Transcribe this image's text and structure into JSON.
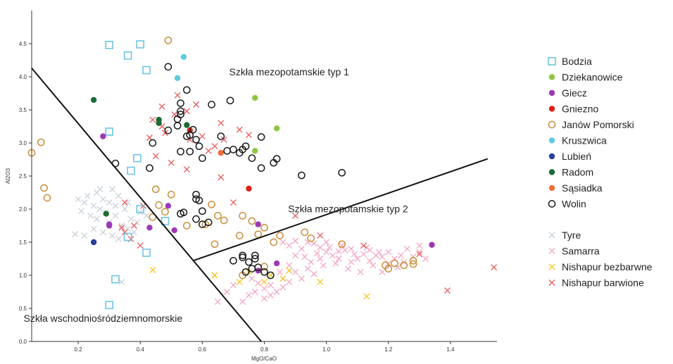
{
  "chart_data": {
    "type": "scatter",
    "xlabel": "MgO/CaO",
    "ylabel": "Al2O3",
    "xlim": [
      0.05,
      1.55
    ],
    "ylim": [
      0,
      5.0
    ],
    "x_ticks": [
      "0.2",
      "0.4",
      "0.6",
      "0.8",
      "1.0",
      "1.2",
      "1.4"
    ],
    "y_ticks": [
      "0.0",
      "0.5",
      "1.0",
      "1.5",
      "2.0",
      "2.5",
      "3.0",
      "3.5",
      "4.0",
      "4.5"
    ],
    "lines": [
      {
        "x1": 0.05,
        "y1": 4.13,
        "x2": 0.79,
        "y2": 0.0
      },
      {
        "x1": 0.57,
        "y1": 1.22,
        "x2": 1.52,
        "y2": 2.76
      }
    ],
    "annotations": [
      {
        "text": "Szkła mezopotamskie typ 1",
        "x": 0.88,
        "y": 4.02
      },
      {
        "text": "Szkła mezopotamskie typ 2",
        "x": 1.07,
        "y": 1.95
      },
      {
        "text": "Szkła wschodniośródziemnomorskie",
        "x": 0.28,
        "y": 0.3
      }
    ],
    "legend_position": "right",
    "series": [
      {
        "name": "Bodzia",
        "marker": "square",
        "color": "#6cc5e3",
        "points": [
          [
            0.3,
            4.48
          ],
          [
            0.4,
            4.49
          ],
          [
            0.36,
            4.32
          ],
          [
            0.42,
            4.1
          ],
          [
            0.3,
            3.17
          ],
          [
            0.39,
            2.77
          ],
          [
            0.37,
            2.58
          ],
          [
            0.4,
            2.0
          ],
          [
            0.36,
            1.58
          ],
          [
            0.48,
            1.82
          ],
          [
            0.42,
            1.34
          ],
          [
            0.32,
            0.94
          ],
          [
            0.3,
            0.55
          ]
        ]
      },
      {
        "name": "Dziekanowice",
        "marker": "dot",
        "color": "#8dc63f",
        "points": [
          [
            0.77,
            3.68
          ],
          [
            0.84,
            3.22
          ],
          [
            0.77,
            2.88
          ]
        ]
      },
      {
        "name": "Giecz",
        "marker": "dot",
        "color": "#9b3ab5",
        "points": [
          [
            0.28,
            3.1
          ],
          [
            0.49,
            2.05
          ],
          [
            0.3,
            1.75
          ],
          [
            0.43,
            1.72
          ],
          [
            0.51,
            1.68
          ],
          [
            0.78,
            1.77
          ],
          [
            0.84,
            1.18
          ],
          [
            0.78,
            1.07
          ],
          [
            1.34,
            1.46
          ],
          [
            0.3,
            1.77
          ]
        ]
      },
      {
        "name": "Gniezno",
        "marker": "dot",
        "color": "#e0201b",
        "points": [
          [
            0.56,
            3.19
          ],
          [
            0.75,
            2.31
          ]
        ]
      },
      {
        "name": "Janów Pomorski",
        "marker": "ring",
        "color": "#c98e3c",
        "points": [
          [
            0.08,
            3.01
          ],
          [
            0.05,
            2.85
          ],
          [
            0.09,
            2.32
          ],
          [
            0.1,
            2.17
          ],
          [
            0.49,
            4.55
          ],
          [
            0.45,
            2.3
          ],
          [
            0.46,
            2.06
          ],
          [
            0.5,
            2.22
          ],
          [
            0.44,
            1.88
          ],
          [
            0.48,
            1.96
          ],
          [
            0.63,
            2.07
          ],
          [
            0.65,
            1.9
          ],
          [
            0.67,
            1.83
          ],
          [
            0.61,
            1.77
          ],
          [
            0.73,
            1.9
          ],
          [
            0.76,
            1.82
          ],
          [
            0.78,
            1.62
          ],
          [
            0.8,
            1.72
          ],
          [
            0.85,
            1.6
          ],
          [
            0.93,
            1.65
          ],
          [
            0.64,
            1.47
          ],
          [
            0.72,
            1.6
          ],
          [
            0.8,
            1.13
          ],
          [
            1.19,
            1.15
          ],
          [
            1.2,
            1.1
          ],
          [
            1.22,
            1.18
          ],
          [
            1.25,
            1.15
          ],
          [
            1.28,
            1.17
          ],
          [
            1.28,
            1.22
          ],
          [
            1.05,
            1.47
          ],
          [
            0.95,
            1.56
          ],
          [
            0.73,
            1.0
          ],
          [
            0.55,
            1.75
          ],
          [
            0.83,
            1.5
          ]
        ]
      },
      {
        "name": "Kruszwica",
        "marker": "dot",
        "color": "#5ecae0",
        "points": [
          [
            0.54,
            4.3
          ],
          [
            0.52,
            3.98
          ]
        ]
      },
      {
        "name": "Lubień",
        "marker": "dot",
        "color": "#2b3f9e",
        "points": [
          [
            0.25,
            1.5
          ]
        ]
      },
      {
        "name": "Radom",
        "marker": "dot",
        "color": "#1e6b35",
        "points": [
          [
            0.25,
            3.65
          ],
          [
            0.46,
            3.35
          ],
          [
            0.46,
            3.3
          ],
          [
            0.55,
            3.27
          ],
          [
            0.29,
            1.93
          ]
        ]
      },
      {
        "name": "Sąsiadka",
        "marker": "dot",
        "color": "#f26b3a",
        "points": [
          [
            0.66,
            2.85
          ]
        ]
      },
      {
        "name": "Wolin",
        "marker": "ring",
        "color": "#1a1a1a",
        "points": [
          [
            0.49,
            4.15
          ],
          [
            0.55,
            3.8
          ],
          [
            0.53,
            3.6
          ],
          [
            0.53,
            3.48
          ],
          [
            0.53,
            3.43
          ],
          [
            0.52,
            3.36
          ],
          [
            0.52,
            3.26
          ],
          [
            0.55,
            3.1
          ],
          [
            0.57,
            3.2
          ],
          [
            0.58,
            3.05
          ],
          [
            0.56,
            3.12
          ],
          [
            0.59,
            2.95
          ],
          [
            0.6,
            2.77
          ],
          [
            0.53,
            2.87
          ],
          [
            0.56,
            2.87
          ],
          [
            0.49,
            3.19
          ],
          [
            0.44,
            3.0
          ],
          [
            0.43,
            2.62
          ],
          [
            0.32,
            2.69
          ],
          [
            0.63,
            3.58
          ],
          [
            0.69,
            3.64
          ],
          [
            0.66,
            3.1
          ],
          [
            0.68,
            2.88
          ],
          [
            0.7,
            2.9
          ],
          [
            0.72,
            2.85
          ],
          [
            0.74,
            2.95
          ],
          [
            0.73,
            2.9
          ],
          [
            0.76,
            2.77
          ],
          [
            0.79,
            3.09
          ],
          [
            0.79,
            2.62
          ],
          [
            0.84,
            2.76
          ],
          [
            0.83,
            2.7
          ],
          [
            0.92,
            2.51
          ],
          [
            1.05,
            2.55
          ],
          [
            0.58,
            2.22
          ],
          [
            0.58,
            2.15
          ],
          [
            0.59,
            2.13
          ],
          [
            0.6,
            1.97
          ],
          [
            0.58,
            1.85
          ],
          [
            0.54,
            1.95
          ],
          [
            0.53,
            1.93
          ],
          [
            0.62,
            1.8
          ],
          [
            0.6,
            1.77
          ],
          [
            0.73,
            1.3
          ],
          [
            0.73,
            1.27
          ],
          [
            0.75,
            1.2
          ],
          [
            0.77,
            1.3
          ],
          [
            0.77,
            1.25
          ],
          [
            0.76,
            1.1
          ],
          [
            0.78,
            1.12
          ],
          [
            0.74,
            1.05
          ],
          [
            0.8,
            1.05
          ],
          [
            0.82,
            1.0
          ],
          [
            0.7,
            1.22
          ]
        ]
      },
      {
        "name": "Tyre",
        "marker": "x",
        "color": "#c8d1d9",
        "points": [
          [
            0.2,
            2.15
          ],
          [
            0.22,
            2.1
          ],
          [
            0.23,
            2.2
          ],
          [
            0.25,
            2.05
          ],
          [
            0.26,
            2.25
          ],
          [
            0.27,
            2.0
          ],
          [
            0.28,
            2.15
          ],
          [
            0.3,
            2.1
          ],
          [
            0.31,
            2.3
          ],
          [
            0.32,
            2.05
          ],
          [
            0.33,
            2.2
          ],
          [
            0.35,
            2.0
          ],
          [
            0.36,
            2.1
          ],
          [
            0.24,
            1.9
          ],
          [
            0.26,
            1.85
          ],
          [
            0.29,
            1.95
          ],
          [
            0.3,
            1.8
          ],
          [
            0.32,
            1.9
          ],
          [
            0.34,
            1.75
          ],
          [
            0.37,
            1.85
          ],
          [
            0.39,
            1.8
          ],
          [
            0.4,
            1.95
          ],
          [
            0.22,
            1.6
          ],
          [
            0.19,
            1.62
          ],
          [
            0.25,
            1.7
          ],
          [
            0.28,
            1.65
          ],
          [
            0.31,
            1.6
          ],
          [
            0.33,
            1.55
          ],
          [
            0.36,
            1.7
          ],
          [
            0.38,
            1.65
          ],
          [
            0.42,
            1.9
          ],
          [
            0.34,
            0.9
          ],
          [
            0.21,
            1.97
          ],
          [
            0.27,
            2.3
          ]
        ]
      },
      {
        "name": "Samarra",
        "marker": "x",
        "color": "#f4a6bf",
        "points": [
          [
            0.86,
            1.5
          ],
          [
            0.88,
            1.45
          ],
          [
            0.9,
            1.52
          ],
          [
            0.92,
            1.4
          ],
          [
            0.94,
            1.5
          ],
          [
            0.96,
            1.48
          ],
          [
            0.98,
            1.42
          ],
          [
            1.0,
            1.35
          ],
          [
            1.02,
            1.3
          ],
          [
            1.04,
            1.25
          ],
          [
            1.06,
            1.38
          ],
          [
            1.08,
            1.2
          ],
          [
            1.1,
            1.25
          ],
          [
            1.12,
            1.32
          ],
          [
            1.14,
            1.22
          ],
          [
            1.16,
            1.3
          ],
          [
            1.18,
            1.28
          ],
          [
            1.2,
            1.35
          ],
          [
            1.22,
            1.25
          ],
          [
            1.24,
            1.3
          ],
          [
            1.26,
            1.4
          ],
          [
            1.28,
            1.28
          ],
          [
            1.3,
            1.35
          ],
          [
            0.9,
            1.3
          ],
          [
            0.95,
            1.2
          ],
          [
            0.99,
            1.15
          ],
          [
            1.03,
            1.18
          ],
          [
            1.07,
            1.1
          ],
          [
            1.11,
            1.05
          ],
          [
            1.15,
            1.15
          ],
          [
            0.76,
            0.95
          ],
          [
            0.78,
            0.88
          ],
          [
            0.8,
            0.8
          ],
          [
            0.82,
            0.85
          ],
          [
            0.84,
            0.75
          ],
          [
            0.86,
            0.82
          ],
          [
            0.88,
            0.9
          ],
          [
            0.75,
            0.7
          ],
          [
            0.8,
            0.65
          ],
          [
            0.73,
            0.6
          ],
          [
            0.77,
            0.75
          ],
          [
            0.9,
            1.05
          ],
          [
            0.92,
            0.95
          ],
          [
            0.94,
            1.1
          ],
          [
            0.96,
            1.02
          ],
          [
            0.68,
            0.75
          ],
          [
            0.7,
            0.85
          ],
          [
            0.65,
            0.6
          ],
          [
            0.85,
            1.05
          ],
          [
            0.88,
            1.15
          ],
          [
            1.0,
            1.5
          ],
          [
            1.05,
            1.45
          ],
          [
            1.13,
            1.42
          ],
          [
            1.2,
            1.18
          ],
          [
            1.25,
            1.2
          ],
          [
            1.18,
            1.05
          ],
          [
            1.3,
            1.45
          ],
          [
            1.32,
            1.25
          ],
          [
            1.08,
            1.4
          ],
          [
            0.93,
            1.28
          ],
          [
            0.97,
            1.33
          ],
          [
            1.01,
            1.42
          ],
          [
            1.09,
            1.32
          ],
          [
            1.17,
            1.35
          ],
          [
            1.23,
            1.12
          ],
          [
            0.82,
            0.7
          ],
          [
            0.86,
            0.95
          ],
          [
            0.98,
            1.25
          ],
          [
            1.04,
            1.36
          ],
          [
            1.14,
            1.38
          ]
        ]
      },
      {
        "name": "Nishapur bezbarwne",
        "marker": "x",
        "color": "#f5c518",
        "points": [
          [
            0.44,
            1.08
          ],
          [
            0.64,
            1.0
          ],
          [
            0.72,
            0.9
          ],
          [
            0.8,
            0.9
          ],
          [
            0.82,
            1.0
          ],
          [
            0.86,
            0.95
          ],
          [
            0.98,
            0.9
          ],
          [
            1.13,
            0.68
          ],
          [
            0.88,
            1.07
          ],
          [
            0.75,
            1.05
          ]
        ]
      },
      {
        "name": "Nishapur barwione",
        "marker": "x",
        "color": "#e8585a",
        "points": [
          [
            0.52,
            3.72
          ],
          [
            0.55,
            3.48
          ],
          [
            0.58,
            3.58
          ],
          [
            0.51,
            3.43
          ],
          [
            0.47,
            3.55
          ],
          [
            0.44,
            3.35
          ],
          [
            0.47,
            3.25
          ],
          [
            0.48,
            3.15
          ],
          [
            0.43,
            3.08
          ],
          [
            0.56,
            3.05
          ],
          [
            0.6,
            3.1
          ],
          [
            0.72,
            3.2
          ],
          [
            0.75,
            3.12
          ],
          [
            0.67,
            3.05
          ],
          [
            0.64,
            2.95
          ],
          [
            0.62,
            2.88
          ],
          [
            0.66,
            2.48
          ],
          [
            0.35,
            2.1
          ],
          [
            0.41,
            2.05
          ],
          [
            0.38,
            1.75
          ],
          [
            0.35,
            1.65
          ],
          [
            0.37,
            1.55
          ],
          [
            0.4,
            1.45
          ],
          [
            0.34,
            1.72
          ],
          [
            0.9,
            1.9
          ],
          [
            0.98,
            1.6
          ],
          [
            1.12,
            1.45
          ],
          [
            1.3,
            1.32
          ],
          [
            1.39,
            0.77
          ],
          [
            1.54,
            1.12
          ],
          [
            0.55,
            2.6
          ],
          [
            0.45,
            2.8
          ],
          [
            0.5,
            2.7
          ],
          [
            0.7,
            2.1
          ],
          [
            0.66,
            3.3
          ]
        ]
      }
    ]
  }
}
